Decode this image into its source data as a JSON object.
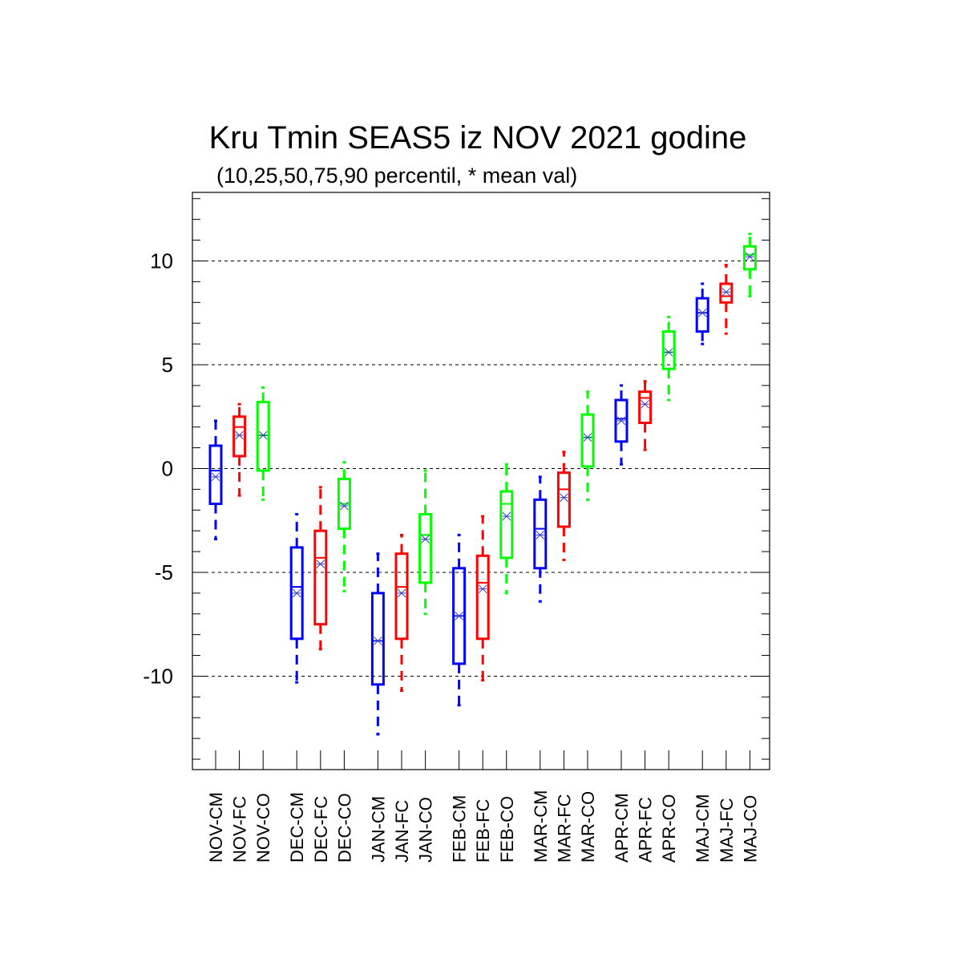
{
  "chart_data": {
    "type": "box",
    "title": "Kru Tmin SEAS5 iz NOV 2021 godine",
    "subtitle": "(10,25,50,75,90 percentil, * mean val)",
    "xlabel": "",
    "ylabel": "",
    "ylim": [
      -14.5,
      13.3
    ],
    "yticks": [
      -10,
      -5,
      0,
      5,
      10
    ],
    "ytick_labels": [
      "-10",
      "-5",
      "0",
      "5",
      "10"
    ],
    "y_minor_step": 1,
    "grid_y": [
      -10,
      -5,
      0,
      5,
      10
    ],
    "grid_style": "dashed",
    "legend": "none",
    "groups": [
      "NOV",
      "DEC",
      "JAN",
      "FEB",
      "MAR",
      "APR",
      "MAJ"
    ],
    "series_colors": {
      "CM": "#0000ff",
      "FC": "#ff0000",
      "CO": "#00ff00"
    },
    "categories": [
      "NOV-CM",
      "NOV-FC",
      "NOV-CO",
      "DEC-CM",
      "DEC-FC",
      "DEC-CO",
      "JAN-CM",
      "JAN-FC",
      "JAN-CO",
      "FEB-CM",
      "FEB-FC",
      "FEB-CO",
      "MAR-CM",
      "MAR-FC",
      "MAR-CO",
      "APR-CM",
      "APR-FC",
      "APR-CO",
      "MAJ-CM",
      "MAJ-FC",
      "MAJ-CO"
    ],
    "boxes": [
      {
        "label": "NOV-CM",
        "series": "CM",
        "p10": -3.4,
        "p25": -1.7,
        "p50": -0.1,
        "p75": 1.1,
        "p90": 2.3,
        "mean": -0.4
      },
      {
        "label": "NOV-FC",
        "series": "FC",
        "p10": -1.3,
        "p25": 0.6,
        "p50": 2.0,
        "p75": 2.5,
        "p90": 3.1,
        "mean": 1.6
      },
      {
        "label": "NOV-CO",
        "series": "CO",
        "p10": -1.5,
        "p25": -0.1,
        "p50": 1.6,
        "p75": 3.2,
        "p90": 3.9,
        "mean": 1.6
      },
      {
        "label": "DEC-CM",
        "series": "CM",
        "p10": -10.3,
        "p25": -8.2,
        "p50": -5.7,
        "p75": -3.8,
        "p90": -2.2,
        "mean": -6.0
      },
      {
        "label": "DEC-FC",
        "series": "FC",
        "p10": -8.7,
        "p25": -7.5,
        "p50": -4.3,
        "p75": -3.0,
        "p90": -0.9,
        "mean": -4.6
      },
      {
        "label": "DEC-CO",
        "series": "CO",
        "p10": -5.9,
        "p25": -2.9,
        "p50": -1.7,
        "p75": -0.5,
        "p90": 0.3,
        "mean": -1.8
      },
      {
        "label": "JAN-CM",
        "series": "CM",
        "p10": -12.8,
        "p25": -10.4,
        "p50": -8.3,
        "p75": -6.0,
        "p90": -4.1,
        "mean": -8.3
      },
      {
        "label": "JAN-FC",
        "series": "FC",
        "p10": -10.7,
        "p25": -8.2,
        "p50": -5.7,
        "p75": -4.1,
        "p90": -3.2,
        "mean": -6.0
      },
      {
        "label": "JAN-CO",
        "series": "CO",
        "p10": -7.0,
        "p25": -5.5,
        "p50": -3.2,
        "p75": -2.2,
        "p90": -0.1,
        "mean": -3.4
      },
      {
        "label": "FEB-CM",
        "series": "CM",
        "p10": -11.4,
        "p25": -9.4,
        "p50": -7.1,
        "p75": -4.8,
        "p90": -3.2,
        "mean": -7.1
      },
      {
        "label": "FEB-FC",
        "series": "FC",
        "p10": -10.2,
        "p25": -8.2,
        "p50": -5.5,
        "p75": -4.2,
        "p90": -2.3,
        "mean": -5.8
      },
      {
        "label": "FEB-CO",
        "series": "CO",
        "p10": -6.0,
        "p25": -4.3,
        "p50": -1.7,
        "p75": -1.1,
        "p90": 0.2,
        "mean": -2.3
      },
      {
        "label": "MAR-CM",
        "series": "CM",
        "p10": -6.4,
        "p25": -4.8,
        "p50": -2.9,
        "p75": -1.5,
        "p90": -0.4,
        "mean": -3.2
      },
      {
        "label": "MAR-FC",
        "series": "FC",
        "p10": -4.4,
        "p25": -2.8,
        "p50": -1.0,
        "p75": -0.2,
        "p90": 0.8,
        "mean": -1.4
      },
      {
        "label": "MAR-CO",
        "series": "CO",
        "p10": -1.5,
        "p25": 0.1,
        "p50": 1.5,
        "p75": 2.6,
        "p90": 3.7,
        "mean": 1.5
      },
      {
        "label": "APR-CM",
        "series": "CM",
        "p10": 0.2,
        "p25": 1.3,
        "p50": 2.4,
        "p75": 3.3,
        "p90": 4.0,
        "mean": 2.3
      },
      {
        "label": "APR-FC",
        "series": "FC",
        "p10": 0.9,
        "p25": 2.2,
        "p50": 3.4,
        "p75": 3.7,
        "p90": 4.2,
        "mean": 3.1
      },
      {
        "label": "APR-CO",
        "series": "CO",
        "p10": 3.3,
        "p25": 4.8,
        "p50": 5.6,
        "p75": 6.6,
        "p90": 7.3,
        "mean": 5.6
      },
      {
        "label": "MAJ-CM",
        "series": "CM",
        "p10": 6.0,
        "p25": 6.6,
        "p50": 7.5,
        "p75": 8.2,
        "p90": 8.9,
        "mean": 7.5
      },
      {
        "label": "MAJ-FC",
        "series": "FC",
        "p10": 6.5,
        "p25": 8.0,
        "p50": 8.3,
        "p75": 8.9,
        "p90": 9.8,
        "mean": 8.5
      },
      {
        "label": "MAJ-CO",
        "series": "CO",
        "p10": 8.3,
        "p25": 9.6,
        "p50": 10.3,
        "p75": 10.7,
        "p90": 11.3,
        "mean": 10.2
      }
    ]
  }
}
